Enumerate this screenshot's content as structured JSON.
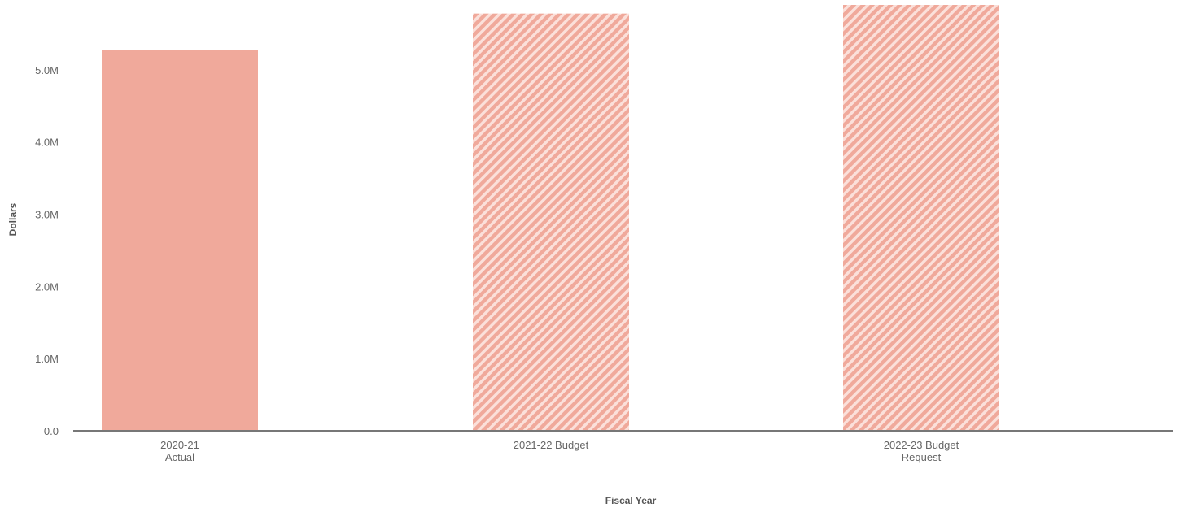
{
  "chart_data": {
    "type": "bar",
    "title": "",
    "xlabel": "Fiscal Year",
    "ylabel": "Dollars",
    "categories": [
      [
        "2020-21",
        "Actual"
      ],
      [
        "2021-22 Budget"
      ],
      [
        "2022-23 Budget",
        "Request"
      ]
    ],
    "values": [
      5270000,
      5780000,
      5900000
    ],
    "bar_styles": [
      "solid",
      "hatched",
      "hatched"
    ],
    "ylim": [
      0,
      5900000
    ],
    "yticks": [
      0,
      1000000,
      2000000,
      3000000,
      4000000,
      5000000
    ],
    "ytick_labels": [
      "0.0",
      "1.0M",
      "2.0M",
      "3.0M",
      "4.0M",
      "5.0M"
    ],
    "grid": false,
    "legend": "none",
    "colors": {
      "bar": "#f0a99b",
      "hatch_light": "#fbe0da",
      "axis": "#777777",
      "text": "#666666"
    }
  }
}
